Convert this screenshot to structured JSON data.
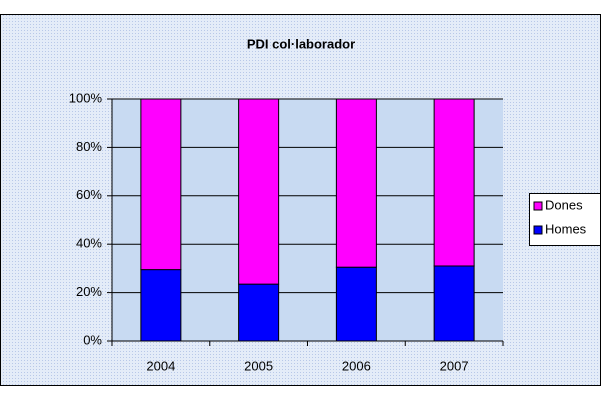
{
  "chart_data": {
    "type": "stacked_percent_bar",
    "title": "PDI col·laborador",
    "categories": [
      "2004",
      "2005",
      "2006",
      "2007"
    ],
    "series": [
      {
        "name": "Homes",
        "color": "#0000ff",
        "values": [
          29.5,
          23.5,
          30.5,
          31
        ]
      },
      {
        "name": "Dones",
        "color": "#ff00ff",
        "values": [
          70.5,
          76.5,
          69.5,
          69
        ]
      }
    ],
    "ylim": [
      0,
      100
    ],
    "yticks": [
      {
        "value": 0,
        "label": "0%"
      },
      {
        "value": 20,
        "label": "20%"
      },
      {
        "value": 40,
        "label": "40%"
      },
      {
        "value": 60,
        "label": "60%"
      },
      {
        "value": 80,
        "label": "80%"
      },
      {
        "value": 100,
        "label": "100%"
      }
    ],
    "grid": true,
    "legend": "right"
  }
}
